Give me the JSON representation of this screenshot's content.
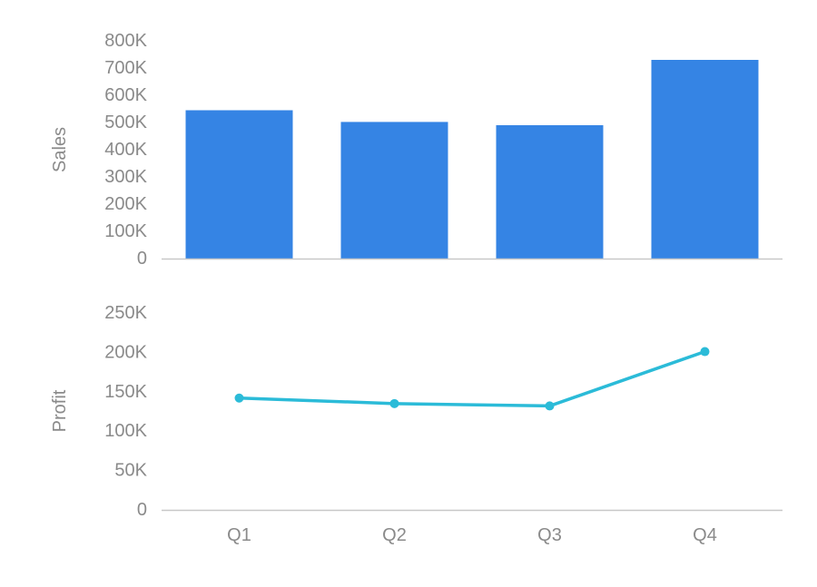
{
  "colors": {
    "bar": "#3584e4",
    "line": "#2bbbd8",
    "axis": "#c8c8c8",
    "text": "#8a8a8a"
  },
  "chart_data": [
    {
      "type": "bar",
      "categories": [
        "Q1",
        "Q2",
        "Q3",
        "Q4"
      ],
      "values": [
        545000,
        502000,
        490000,
        730000
      ],
      "ylabel": "Sales",
      "ylim": [
        0,
        800000
      ],
      "yticks": [
        {
          "value": 0,
          "label": "0"
        },
        {
          "value": 100000,
          "label": "100K"
        },
        {
          "value": 200000,
          "label": "200K"
        },
        {
          "value": 300000,
          "label": "300K"
        },
        {
          "value": 400000,
          "label": "400K"
        },
        {
          "value": 500000,
          "label": "500K"
        },
        {
          "value": 600000,
          "label": "600K"
        },
        {
          "value": 700000,
          "label": "700K"
        },
        {
          "value": 800000,
          "label": "800K"
        }
      ],
      "grid": false
    },
    {
      "type": "line",
      "categories": [
        "Q1",
        "Q2",
        "Q3",
        "Q4"
      ],
      "values": [
        142000,
        135000,
        132000,
        201000
      ],
      "ylabel": "Profit",
      "ylim": [
        0,
        250000
      ],
      "yticks": [
        {
          "value": 0,
          "label": "0"
        },
        {
          "value": 50000,
          "label": "50K"
        },
        {
          "value": 100000,
          "label": "100K"
        },
        {
          "value": 150000,
          "label": "150K"
        },
        {
          "value": 200000,
          "label": "200K"
        },
        {
          "value": 250000,
          "label": "250K"
        }
      ],
      "xticks": [
        "Q1",
        "Q2",
        "Q3",
        "Q4"
      ],
      "grid": false
    }
  ]
}
